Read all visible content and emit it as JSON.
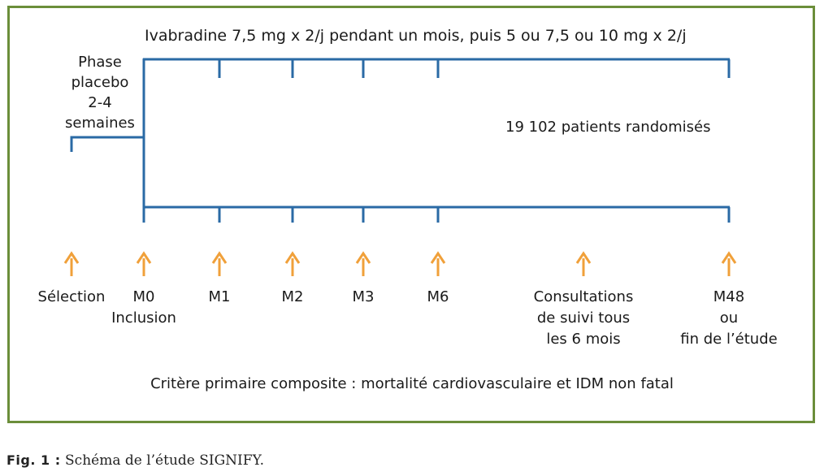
{
  "colors": {
    "frame": "#6b8e3a",
    "timeline": "#2a6aa5",
    "arrow": "#f0a03a"
  },
  "diagram": {
    "top_label": "Ivabradine 7,5 mg x 2/j pendant un mois, puis 5 ou 7,5 ou 10 mg x 2/j",
    "phase_label": [
      "Phase",
      "placebo",
      "2-4",
      "semaines"
    ],
    "patients_label": "19 102 patients randomisés",
    "milestones": [
      {
        "lines": [
          "Sélection"
        ]
      },
      {
        "lines": [
          "M0",
          "Inclusion"
        ]
      },
      {
        "lines": [
          "M1"
        ]
      },
      {
        "lines": [
          "M2"
        ]
      },
      {
        "lines": [
          "M3"
        ]
      },
      {
        "lines": [
          "M6"
        ]
      },
      {
        "lines": [
          "Consultations",
          "de suivi tous",
          "les 6 mois"
        ]
      },
      {
        "lines": [
          "M48",
          "ou",
          "fin de l’étude"
        ]
      }
    ],
    "criteria_label": "Critère primaire composite : mortalité cardiovasculaire et IDM non fatal"
  },
  "caption": {
    "prefix": "Fig. 1 :",
    "text": " Schéma de l’étude SIGNIFY."
  }
}
